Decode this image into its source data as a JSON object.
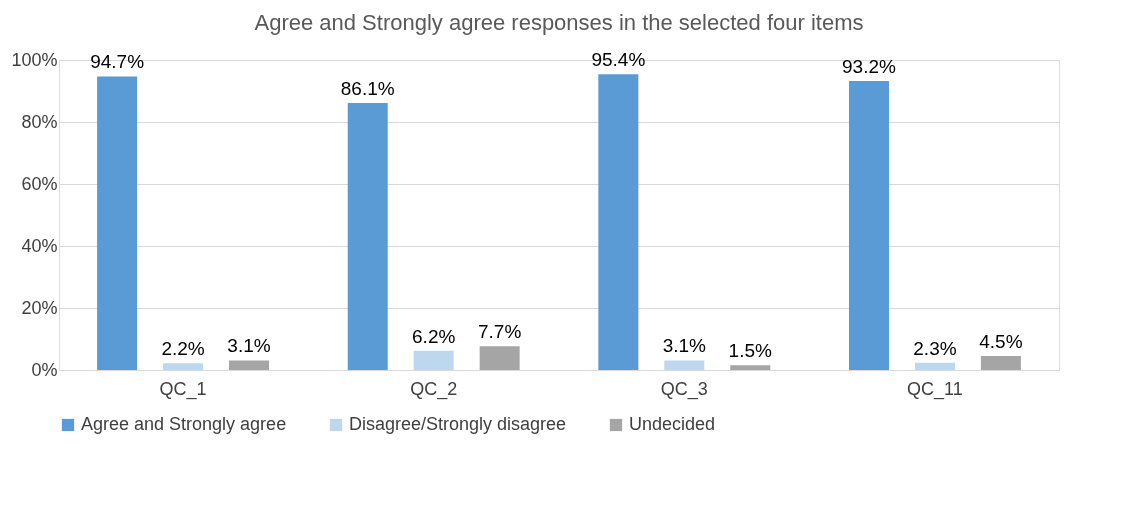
{
  "chart_data": {
    "type": "bar",
    "title": "Agree and Strongly agree responses in the selected four items",
    "categories": [
      "QC_1",
      "QC_2",
      "QC_3",
      "QC_11"
    ],
    "series": [
      {
        "name": "Agree and Strongly agree",
        "color": "#5b9bd5",
        "values": [
          94.7,
          86.1,
          95.4,
          93.2
        ],
        "value_labels": [
          "94.7%",
          "86.1%",
          "95.4%",
          "93.2%"
        ]
      },
      {
        "name": "Disagree/Strongly disagree",
        "color": "#bdd7ee",
        "values": [
          2.2,
          6.2,
          3.1,
          2.3
        ],
        "value_labels": [
          "2.2%",
          "6.2%",
          "3.1%",
          "2.3%"
        ]
      },
      {
        "name": "Undecided",
        "color": "#a5a5a5",
        "values": [
          3.1,
          7.7,
          1.5,
          4.5
        ],
        "value_labels": [
          "3.1%",
          "7.7%",
          "1.5%",
          "4.5%"
        ]
      }
    ],
    "ylim": [
      0,
      100
    ],
    "yticks": [
      {
        "value": 0,
        "label": "0%"
      },
      {
        "value": 20,
        "label": "20%"
      },
      {
        "value": 40,
        "label": "40%"
      },
      {
        "value": 60,
        "label": "60%"
      },
      {
        "value": 80,
        "label": "80%"
      },
      {
        "value": 100,
        "label": "100%"
      }
    ],
    "grid": "y",
    "legend": "bottom"
  }
}
